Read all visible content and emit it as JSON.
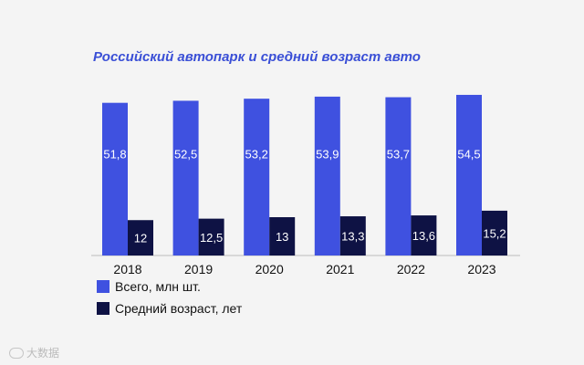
{
  "chart_data": {
    "type": "bar",
    "title": "Российский автопарк и средний возраст авто",
    "categories": [
      "2018",
      "2019",
      "2020",
      "2021",
      "2022",
      "2023"
    ],
    "series": [
      {
        "name": "Всего, млн шт.",
        "color": "#3f51e0",
        "values": [
          51.8,
          52.5,
          53.2,
          53.9,
          53.7,
          54.5
        ],
        "labels": [
          "51,8",
          "52,5",
          "53,2",
          "53,9",
          "53,7",
          "54,5"
        ]
      },
      {
        "name": "Средний возраст, лет",
        "color": "#0e1244",
        "values": [
          12,
          12.5,
          13,
          13.3,
          13.6,
          15.2
        ],
        "labels": [
          "12",
          "12,5",
          "13",
          "13,3",
          "13,6",
          "15,2"
        ]
      }
    ],
    "xlabel": "",
    "ylabel": "",
    "grid": false,
    "legend_position": "bottom-left"
  },
  "watermark": {
    "text": "大数据"
  }
}
